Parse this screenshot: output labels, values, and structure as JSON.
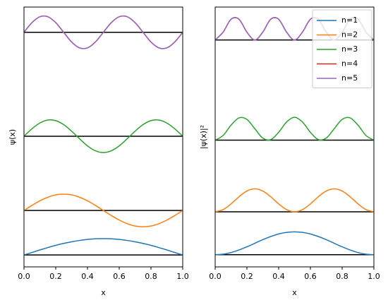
{
  "chart_data": [
    {
      "type": "line",
      "xlabel": "x",
      "ylabel": "ψ(x)",
      "x": [
        0,
        0.05,
        0.1,
        0.15,
        0.2,
        0.25,
        0.3,
        0.35,
        0.4,
        0.45,
        0.5,
        0.55,
        0.6,
        0.65,
        0.7,
        0.75,
        0.8,
        0.85,
        0.9,
        0.95,
        1
      ],
      "series": [
        {
          "color": "#1f77b4",
          "values": [
            1,
            1.17,
            1.34,
            1.5,
            1.65,
            1.78,
            1.89,
            1.98,
            2.05,
            2.09,
            2.1,
            2.09,
            2.05,
            1.98,
            1.89,
            1.78,
            1.65,
            1.5,
            1.34,
            1.17,
            1
          ]
        },
        {
          "color": "#ff7f0e",
          "values": [
            4,
            4.34,
            4.65,
            4.89,
            5.05,
            5.1,
            5.05,
            4.89,
            4.65,
            4.34,
            4,
            3.66,
            3.35,
            3.11,
            2.95,
            2.9,
            2.95,
            3.11,
            3.35,
            3.66,
            4
          ]
        },
        {
          "color": "#2ca02c",
          "values": [
            9,
            9.5,
            9.89,
            10.09,
            10.05,
            9.78,
            9.34,
            8.83,
            8.35,
            8.02,
            7.9,
            8.02,
            8.35,
            8.83,
            9.34,
            9.78,
            10.05,
            10.09,
            9.89,
            9.5,
            9
          ]
        },
        {
          "color": "#d62728",
          "values": [
            16,
            16.65,
            17.05,
            17.05,
            16.65,
            16,
            15.35,
            14.95,
            14.95,
            15.35,
            16,
            16.65,
            17.05,
            17.05,
            16.65,
            16,
            15.35,
            14.95,
            14.95,
            15.35,
            16
          ]
        },
        {
          "color": "#9467bd",
          "values": [
            16,
            16.65,
            17.05,
            17.05,
            16.65,
            16,
            15.35,
            14.95,
            14.95,
            15.35,
            16,
            16.65,
            17.05,
            17.05,
            16.65,
            16,
            15.35,
            14.95,
            14.95,
            15.35,
            16
          ]
        }
      ],
      "baselines": [
        1,
        4,
        9,
        16
      ],
      "baseline_color": "#000000",
      "xlim": [
        0,
        1
      ],
      "ylim": [
        0.2,
        17.7
      ],
      "xticks": [
        {
          "value": 0,
          "label": "0.0"
        },
        {
          "value": 0.2,
          "label": "0.2"
        },
        {
          "value": 0.4,
          "label": "0.4"
        },
        {
          "value": 0.6,
          "label": "0.6"
        },
        {
          "value": 0.8,
          "label": "0.8"
        },
        {
          "value": 1,
          "label": "1.0"
        }
      ]
    },
    {
      "type": "line",
      "xlabel": "x",
      "ylabel": "|ψ(x)|²",
      "legend": "upper right",
      "x": [
        0,
        0.05,
        0.1,
        0.15,
        0.2,
        0.25,
        0.3,
        0.35,
        0.4,
        0.45,
        0.5,
        0.55,
        0.6,
        0.65,
        0.7,
        0.75,
        0.8,
        0.85,
        0.9,
        0.95,
        1
      ],
      "series": [
        {
          "name": "n=1",
          "color": "#1f77b4",
          "values": [
            1,
            1.04,
            1.15,
            1.33,
            1.55,
            1.8,
            2.05,
            2.27,
            2.45,
            2.56,
            2.6,
            2.56,
            2.45,
            2.27,
            2.05,
            1.8,
            1.55,
            1.33,
            1.15,
            1.04,
            1
          ]
        },
        {
          "name": "n=2",
          "color": "#ff7f0e",
          "values": [
            4,
            4.15,
            4.55,
            5.05,
            5.45,
            5.6,
            5.45,
            5.05,
            4.55,
            4.15,
            4,
            4.15,
            4.55,
            5.05,
            5.45,
            5.6,
            5.45,
            5.05,
            4.55,
            4.15,
            4
          ]
        },
        {
          "name": "n=3",
          "color": "#2ca02c",
          "values": [
            9,
            9.33,
            10.05,
            10.56,
            10.45,
            9.8,
            9.15,
            9.04,
            9.55,
            10.27,
            10.6,
            10.27,
            9.55,
            9.04,
            9.15,
            9.8,
            10.45,
            10.56,
            10.05,
            9.33,
            9
          ]
        },
        {
          "name": "n=4",
          "color": "#d62728",
          "values": [
            16,
            16.55,
            17.45,
            17.45,
            16.55,
            16,
            16.55,
            17.45,
            17.45,
            16.55,
            16,
            16.55,
            17.45,
            17.45,
            16.55,
            16,
            16.55,
            17.45,
            17.45,
            16.55,
            16
          ]
        },
        {
          "name": "n=5",
          "color": "#9467bd",
          "values": [
            16,
            16.55,
            17.45,
            17.45,
            16.55,
            16,
            16.55,
            17.45,
            17.45,
            16.55,
            16,
            16.55,
            17.45,
            17.45,
            16.55,
            16,
            16.55,
            17.45,
            17.45,
            16.55,
            16
          ]
        }
      ],
      "baselines": [
        1,
        4,
        9,
        16
      ],
      "baseline_color": "#000000",
      "xlim": [
        0,
        1
      ],
      "ylim": [
        0.15,
        18.3
      ],
      "xticks": [
        {
          "value": 0,
          "label": "0.0"
        },
        {
          "value": 0.2,
          "label": "0.2"
        },
        {
          "value": 0.4,
          "label": "0.4"
        },
        {
          "value": 0.6,
          "label": "0.6"
        },
        {
          "value": 0.8,
          "label": "0.8"
        },
        {
          "value": 1,
          "label": "1.0"
        }
      ]
    }
  ]
}
